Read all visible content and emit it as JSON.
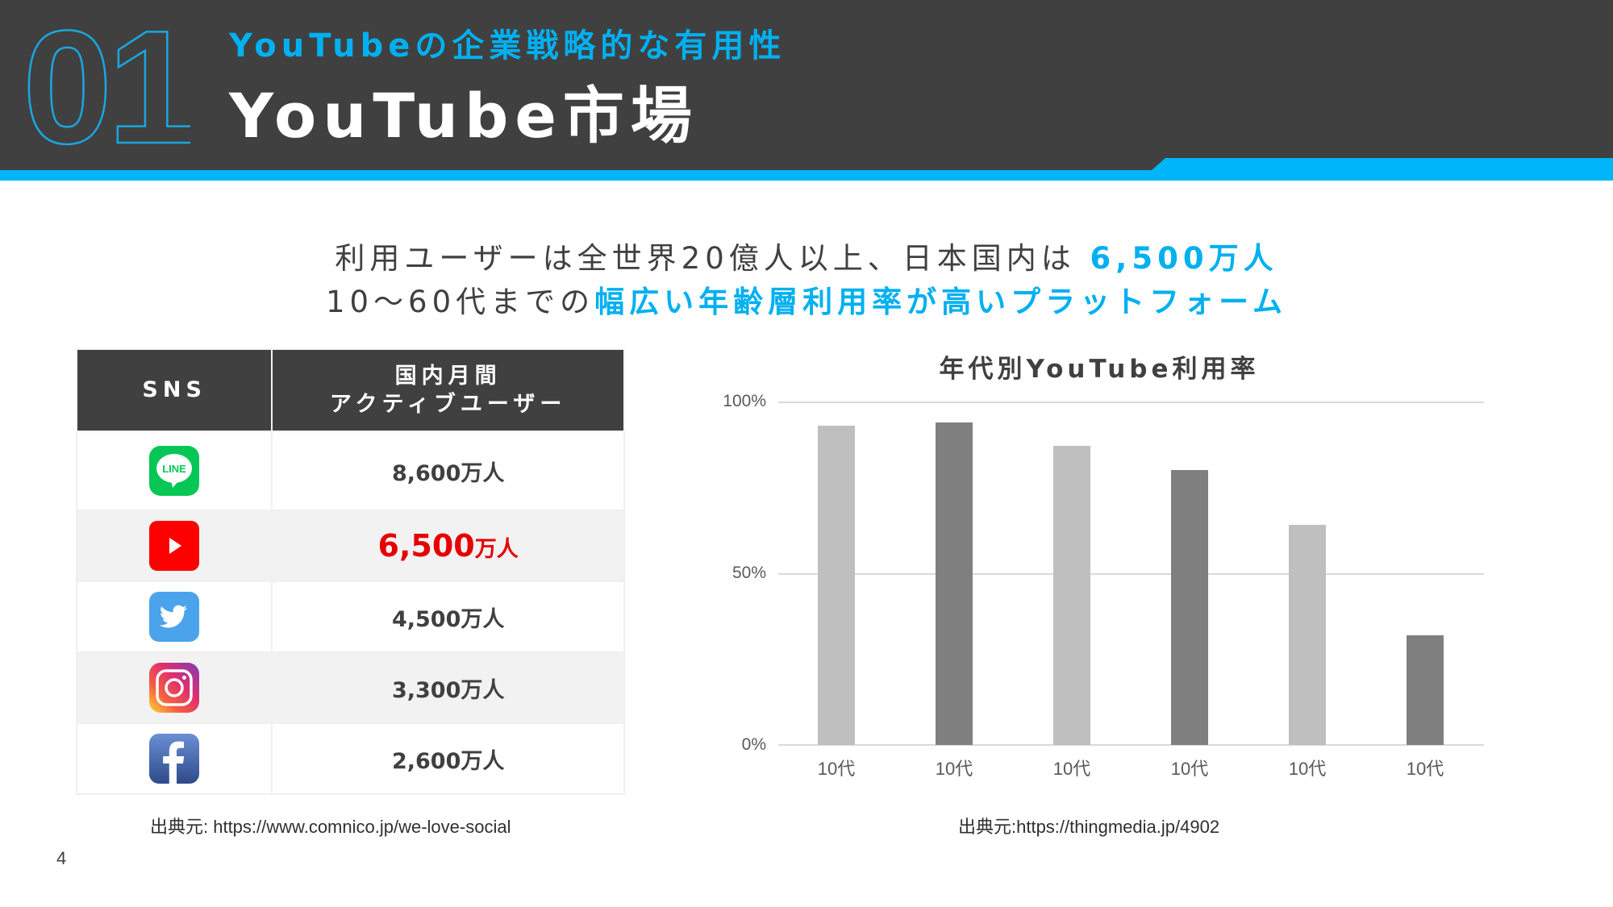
{
  "header": {
    "section_number": "01",
    "subtitle": "YouTubeの企業戦略的な有用性",
    "title": "YouTube市場",
    "colors": {
      "dark": "#404040",
      "accent": "#00b0f0",
      "title": "#ffffff"
    }
  },
  "lead": {
    "line1_plain": "利用ユーザーは全世界20億人以上、日本国内は ",
    "line1_accent": "6,500万人",
    "line2_plain": "10〜60代までの",
    "line2_accent": "幅広い年齢層利用率が高いプラットフォーム"
  },
  "table": {
    "headers": {
      "sns": "SNS",
      "users_line1": "国内月間",
      "users_line2": "アクティブユーザー"
    },
    "rows": [
      {
        "sns": "LINE",
        "icon": "line-icon",
        "users": "8,600万人",
        "highlight": false
      },
      {
        "sns": "YouTube",
        "icon": "youtube-icon",
        "users_number": "6,500",
        "users_unit": "万人",
        "highlight": true
      },
      {
        "sns": "Twitter",
        "icon": "twitter-icon",
        "users": "4,500万人",
        "highlight": false
      },
      {
        "sns": "Instagram",
        "icon": "instagram-icon",
        "users": "3,300万人",
        "highlight": false
      },
      {
        "sns": "Facebook",
        "icon": "facebook-icon",
        "users": "2,600万人",
        "highlight": false
      }
    ],
    "source": "出典元: https://www.comnico.jp/we-love-social",
    "highlight_color": "#e60000"
  },
  "chart_data": {
    "type": "bar",
    "title": "年代別YouTube利用率",
    "categories": [
      "10代",
      "10代",
      "10代",
      "10代",
      "10代",
      "10代"
    ],
    "values": [
      93,
      94,
      87,
      80,
      64,
      32
    ],
    "bar_colors": [
      "#bfbfbf",
      "#7f7f7f",
      "#bfbfbf",
      "#7f7f7f",
      "#bfbfbf",
      "#7f7f7f"
    ],
    "yticks": [
      "0%",
      "50%",
      "100%"
    ],
    "ylim": [
      0,
      100
    ],
    "xlabel": "",
    "ylabel": "",
    "grid": true,
    "legend": "none",
    "source": "出典元:https://thingmedia.jp/4902"
  },
  "footer": {
    "page_number": "4"
  }
}
